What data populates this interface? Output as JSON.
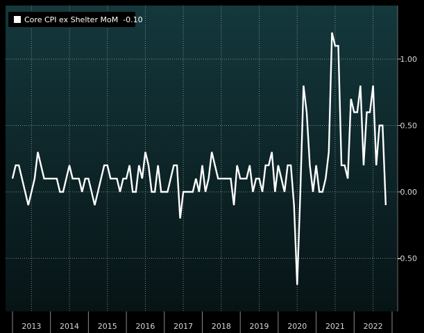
{
  "chart_data": {
    "type": "line",
    "legend": {
      "label": "Core CPI ex Shelter MoM",
      "last_value": "-0.10",
      "placement": "top-left"
    },
    "x_axis": {
      "years": [
        "2013",
        "2014",
        "2015",
        "2016",
        "2017",
        "2018",
        "2019",
        "2020",
        "2021",
        "2022"
      ],
      "start": "2013-01",
      "end": "2022-12"
    },
    "y_axis": {
      "ticks": [
        "1.00",
        "0.50",
        "0.00",
        "-0.50"
      ],
      "tick_values": [
        1.0,
        0.5,
        0.0,
        -0.5
      ],
      "range": [
        -0.75,
        1.25
      ],
      "position": "right"
    },
    "grid": true,
    "colors": {
      "line": "#ffffff",
      "background_top": "#14383c",
      "background_bottom": "#071416",
      "grid": "#ffffff"
    },
    "series": [
      {
        "name": "Core CPI ex Shelter MoM",
        "values": [
          0.1,
          0.2,
          0.2,
          0.1,
          0.0,
          -0.1,
          0.0,
          0.1,
          0.3,
          0.2,
          0.1,
          0.1,
          0.1,
          0.1,
          0.1,
          0.0,
          0.0,
          0.1,
          0.2,
          0.1,
          0.1,
          0.1,
          0.0,
          0.1,
          0.1,
          0.0,
          -0.1,
          0.0,
          0.1,
          0.2,
          0.2,
          0.1,
          0.1,
          0.1,
          0.0,
          0.1,
          0.1,
          0.2,
          0.0,
          0.0,
          0.2,
          0.1,
          0.3,
          0.2,
          0.0,
          0.0,
          0.2,
          0.0,
          0.0,
          0.0,
          0.1,
          0.2,
          0.2,
          -0.2,
          0.0,
          0.0,
          0.0,
          0.0,
          0.1,
          0.0,
          0.2,
          0.0,
          0.1,
          0.3,
          0.2,
          0.1,
          0.1,
          0.1,
          0.1,
          0.1,
          -0.1,
          0.2,
          0.1,
          0.1,
          0.1,
          0.2,
          0.0,
          0.1,
          0.1,
          0.0,
          0.2,
          0.2,
          0.3,
          0.0,
          0.2,
          0.1,
          0.0,
          0.2,
          0.2,
          -0.1,
          -0.7,
          0.0,
          0.8,
          0.6,
          0.2,
          0.0,
          0.2,
          0.0,
          0.0,
          0.1,
          0.3,
          1.2,
          1.1,
          1.1,
          0.2,
          0.2,
          0.1,
          0.7,
          0.6,
          0.6,
          0.8,
          0.2,
          0.6,
          0.6,
          0.8,
          0.2,
          0.5,
          0.5,
          -0.1
        ]
      }
    ]
  }
}
